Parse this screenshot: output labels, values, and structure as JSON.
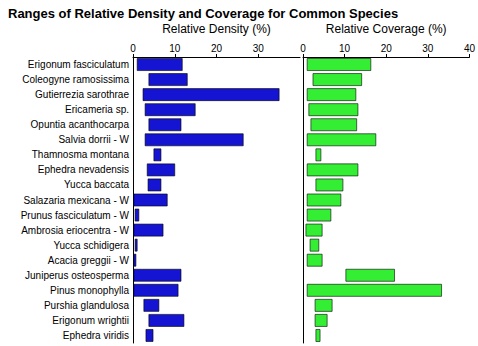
{
  "title": "Ranges of Relative Density and Coverage for Common Species",
  "chart_data": [
    {
      "type": "bar",
      "orientation": "horizontal",
      "title": "Relative Density (%)",
      "categories": [
        "Erigonum fasciculatum",
        "Coleogyne ramosissima",
        "Gutierrezia sarothrae",
        "Ericameria sp.",
        "Opuntia acanthocarpa",
        "Salvia dorrii - W",
        "Thamnosma montana",
        "Ephedra nevadensis",
        "Yucca baccata",
        "Salazaria mexicana - W",
        "Prunus fasciculatum - W",
        "Ambrosia eriocentra - W",
        "Yucca schidigera",
        "Acacia greggii - W",
        "Juniperus osteosperma",
        "Pinus monophylla",
        "Purshia glandulosa",
        "Erigonum wrightii",
        "Ephedra viridis"
      ],
      "values": [
        [
          1,
          11.8
        ],
        [
          3.8,
          13
        ],
        [
          2.4,
          35
        ],
        [
          2.9,
          14.9
        ],
        [
          3.8,
          11.5
        ],
        [
          2.9,
          26.4
        ],
        [
          5,
          6.7
        ],
        [
          3.4,
          10
        ],
        [
          3.6,
          6.7
        ],
        [
          0.2,
          8.2
        ],
        [
          0.5,
          1.4
        ],
        [
          0.2,
          7.2
        ],
        [
          0.5,
          1
        ],
        [
          0.2,
          0.7
        ],
        [
          0.2,
          11.5
        ],
        [
          0.2,
          10.8
        ],
        [
          2.6,
          6.2
        ],
        [
          3.8,
          12.2
        ],
        [
          3.1,
          4.8
        ]
      ],
      "color": "#1414d2",
      "xlim": [
        0,
        40
      ],
      "xticks": [
        0,
        10,
        20,
        30
      ],
      "grid": false
    },
    {
      "type": "bar",
      "orientation": "horizontal",
      "title": "Relative Coverage (%)",
      "categories": [
        "Erigonum fasciculatum",
        "Coleogyne ramosissima",
        "Gutierrezia sarothrae",
        "Ericameria sp.",
        "Opuntia acanthocarpa",
        "Salvia dorrii - W",
        "Thamnosma montana",
        "Ephedra nevadensis",
        "Yucca baccata",
        "Salazaria mexicana - W",
        "Prunus fasciculatum - W",
        "Ambrosia eriocentra - W",
        "Yucca schidigera",
        "Acacia greggii - W",
        "Juniperus osteosperma",
        "Pinus monophylla",
        "Purshia glandulosa",
        "Erigonum wrightii",
        "Ephedra viridis"
      ],
      "values": [
        [
          1,
          16.3
        ],
        [
          2.4,
          14.1
        ],
        [
          1,
          12.7
        ],
        [
          1.4,
          13.2
        ],
        [
          1.9,
          12.9
        ],
        [
          1,
          17.5
        ],
        [
          3.1,
          4.3
        ],
        [
          1,
          13.2
        ],
        [
          3.1,
          9.6
        ],
        [
          1,
          9.1
        ],
        [
          1,
          6.7
        ],
        [
          0.7,
          4.6
        ],
        [
          1.7,
          3.8
        ],
        [
          1,
          4.6
        ],
        [
          10.3,
          22
        ],
        [
          1,
          33.3
        ],
        [
          2.9,
          7
        ],
        [
          2.9,
          5.8
        ],
        [
          3.1,
          4.1
        ]
      ],
      "color": "#33ee33",
      "xlim": [
        0,
        40
      ],
      "xticks": [
        0,
        10,
        20,
        30,
        40
      ],
      "grid": false,
      "tick_labels": "x"
    }
  ]
}
